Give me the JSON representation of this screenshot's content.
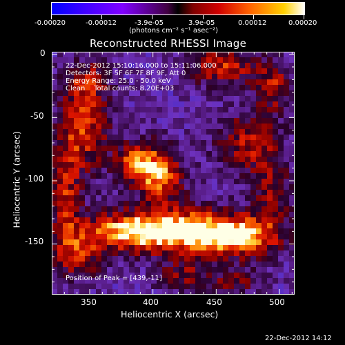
{
  "colorbar": {
    "ticks": [
      "-0.00020",
      "-0.00012",
      "-3.9e-05",
      "3.9e-05",
      "0.00012",
      "0.00020"
    ],
    "tick_values": [
      -0.0002,
      -0.00012,
      -3.9e-05,
      3.9e-05,
      0.00012,
      0.0002
    ],
    "units": "(photons cm⁻² s⁻¹ asec⁻²)",
    "range": [
      -0.0002,
      0.0002
    ]
  },
  "chart_data": {
    "type": "heatmap",
    "title": "Reconstructed RHESSI Image",
    "xlabel": "Heliocentric X (arcsec)",
    "ylabel": "Heliocentric Y (arcsec)",
    "xlim": [
      320,
      512
    ],
    "ylim": [
      -190,
      2
    ],
    "xticks": [
      350,
      400,
      450,
      500
    ],
    "yticks": [
      0,
      -50,
      -100,
      -150
    ],
    "xtick_labels": [
      "350",
      "400",
      "450",
      "500"
    ],
    "ytick_labels": [
      "0",
      "-50",
      "-100",
      "-150"
    ],
    "peak": [
      439,
      -11
    ],
    "annotations": [
      "22-Dec-2012 15:10:16.000 to 15:11:06.000",
      "Detectors: 3F 5F 6F 7F 8F 9F, Att 0",
      "Energy Range: 25.0 - 50.0 keV",
      "Clean    Total counts: 8.20E+03"
    ],
    "peak_label": "Position of Peak = [439,-11]"
  },
  "footer": {
    "timestamp": "22-Dec-2012 14:12"
  },
  "colors": {
    "background": "#000000",
    "axis": "#ffffff"
  }
}
